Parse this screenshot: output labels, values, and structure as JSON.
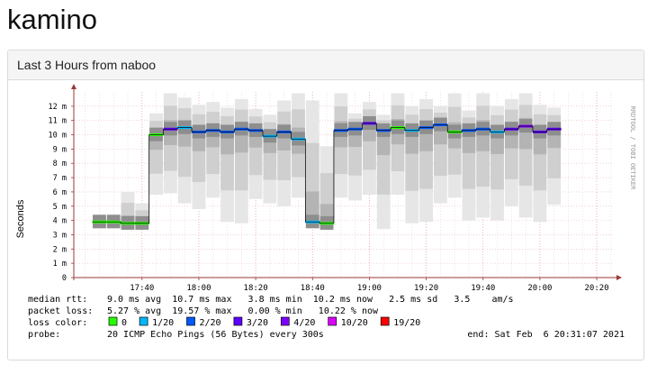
{
  "page": {
    "title": "kamino"
  },
  "panel": {
    "title": "Last 3 Hours from naboo"
  },
  "chart_data": {
    "type": "line",
    "title": "",
    "ylabel": "Seconds",
    "xlabel": "",
    "watermark": "RRDTOOL / TOBI OETIKER",
    "ylim": [
      0,
      13
    ],
    "y_ticks": [
      {
        "v": 0,
        "label": "0"
      },
      {
        "v": 1,
        "label": "1 m"
      },
      {
        "v": 2,
        "label": "2 m"
      },
      {
        "v": 3,
        "label": "3 m"
      },
      {
        "v": 4,
        "label": "4 m"
      },
      {
        "v": 5,
        "label": "5 m"
      },
      {
        "v": 6,
        "label": "6 m"
      },
      {
        "v": 7,
        "label": "7 m"
      },
      {
        "v": 8,
        "label": "8 m"
      },
      {
        "v": 9,
        "label": "9 m"
      },
      {
        "v": 10,
        "label": "10 m"
      },
      {
        "v": 11,
        "label": "11 m"
      },
      {
        "v": 12,
        "label": "12 m"
      }
    ],
    "x_range_minutes": [
      -24,
      166
    ],
    "x_ticks": [
      {
        "m": 0,
        "label": "17:40"
      },
      {
        "m": 20,
        "label": "18:00"
      },
      {
        "m": 40,
        "label": "18:20"
      },
      {
        "m": 60,
        "label": "18:40"
      },
      {
        "m": 80,
        "label": "19:00"
      },
      {
        "m": 100,
        "label": "19:20"
      },
      {
        "m": 120,
        "label": "19:40"
      },
      {
        "m": 140,
        "label": "20:00"
      },
      {
        "m": 160,
        "label": "20:20"
      }
    ],
    "samples": [
      {
        "t": -15,
        "median": 3.9,
        "min": 3.6,
        "max": 4.3,
        "loss": 0
      },
      {
        "t": -10,
        "median": 3.9,
        "min": 3.6,
        "max": 4.2,
        "loss": 0
      },
      {
        "t": -5,
        "median": 3.8,
        "min": 3.6,
        "max": 6.0,
        "loss": 0
      },
      {
        "t": 0,
        "median": 3.8,
        "min": 3.5,
        "max": 5.2,
        "loss": 0
      },
      {
        "t": 5,
        "median": 10.0,
        "min": 5.8,
        "max": 11.5,
        "loss": 0
      },
      {
        "t": 10,
        "median": 10.4,
        "min": 5.9,
        "max": 12.9,
        "loss": 3
      },
      {
        "t": 15,
        "median": 10.5,
        "min": 5.2,
        "max": 12.6,
        "loss": 1
      },
      {
        "t": 20,
        "median": 10.2,
        "min": 4.8,
        "max": 12.1,
        "loss": 2
      },
      {
        "t": 25,
        "median": 10.3,
        "min": 5.6,
        "max": 12.3,
        "loss": 2
      },
      {
        "t": 30,
        "median": 10.2,
        "min": 3.9,
        "max": 11.9,
        "loss": 2
      },
      {
        "t": 35,
        "median": 10.4,
        "min": 3.8,
        "max": 12.5,
        "loss": 2
      },
      {
        "t": 40,
        "median": 10.3,
        "min": 5.5,
        "max": 11.8,
        "loss": 2
      },
      {
        "t": 45,
        "median": 9.9,
        "min": 5.2,
        "max": 11.4,
        "loss": 1
      },
      {
        "t": 50,
        "median": 10.2,
        "min": 5.0,
        "max": 12.4,
        "loss": 2
      },
      {
        "t": 55,
        "median": 9.7,
        "min": 5.6,
        "max": 12.9,
        "loss": 1
      },
      {
        "t": 60,
        "median": 3.9,
        "min": 3.6,
        "max": 12.4,
        "loss": 1
      },
      {
        "t": 65,
        "median": 3.8,
        "min": 3.4,
        "max": 9.2,
        "loss": 0
      },
      {
        "t": 70,
        "median": 10.3,
        "min": 5.6,
        "max": 12.9,
        "loss": 2
      },
      {
        "t": 75,
        "median": 10.4,
        "min": 5.4,
        "max": 11.5,
        "loss": 2
      },
      {
        "t": 80,
        "median": 10.8,
        "min": 5.8,
        "max": 12.3,
        "loss": 3
      },
      {
        "t": 85,
        "median": 10.3,
        "min": 3.4,
        "max": 11.4,
        "loss": 2
      },
      {
        "t": 90,
        "median": 10.5,
        "min": 5.8,
        "max": 12.9,
        "loss": 0
      },
      {
        "t": 95,
        "median": 10.3,
        "min": 3.8,
        "max": 12.0,
        "loss": 1
      },
      {
        "t": 100,
        "median": 10.5,
        "min": 3.9,
        "max": 12.5,
        "loss": 2
      },
      {
        "t": 105,
        "median": 10.7,
        "min": 5.2,
        "max": 12.0,
        "loss": 2
      },
      {
        "t": 110,
        "median": 10.2,
        "min": 5.6,
        "max": 12.9,
        "loss": 0
      },
      {
        "t": 115,
        "median": 10.3,
        "min": 4.0,
        "max": 11.7,
        "loss": 2
      },
      {
        "t": 120,
        "median": 10.4,
        "min": 4.2,
        "max": 12.9,
        "loss": 2
      },
      {
        "t": 125,
        "median": 10.2,
        "min": 4.0,
        "max": 12.0,
        "loss": 1
      },
      {
        "t": 130,
        "median": 10.4,
        "min": 5.0,
        "max": 12.5,
        "loss": 3
      },
      {
        "t": 135,
        "median": 10.6,
        "min": 4.2,
        "max": 12.9,
        "loss": 4
      },
      {
        "t": 140,
        "median": 10.2,
        "min": 3.9,
        "max": 12.1,
        "loss": 3
      },
      {
        "t": 145,
        "median": 10.4,
        "min": 5.1,
        "max": 11.9,
        "loss": 3
      }
    ],
    "stats": [
      {
        "label": "median rtt:",
        "text": "9.0 ms avg  10.7 ms max   3.8 ms min  10.2 ms now   2.5 ms sd   3.5    am/s"
      },
      {
        "label": "packet loss:",
        "text": "5.27 % avg  19.57 % max   0.00 % min   10.22 % now"
      }
    ],
    "loss_legend_label": "loss color:",
    "loss_colors": [
      {
        "label": "0",
        "color": "#26ff00"
      },
      {
        "label": "1/20",
        "color": "#00b8ff"
      },
      {
        "label": "2/20",
        "color": "#0059ff"
      },
      {
        "label": "3/20",
        "color": "#5e00ff"
      },
      {
        "label": "4/20",
        "color": "#7e00ff"
      },
      {
        "label": "10/20",
        "color": "#dd00ff"
      },
      {
        "label": "19/20",
        "color": "#ff0000"
      }
    ],
    "probe": {
      "label": "probe:",
      "text": "20 ICMP Echo Pings (56 Bytes) every 300s",
      "end": "end: Sat Feb  6 20:31:07 2021"
    }
  }
}
